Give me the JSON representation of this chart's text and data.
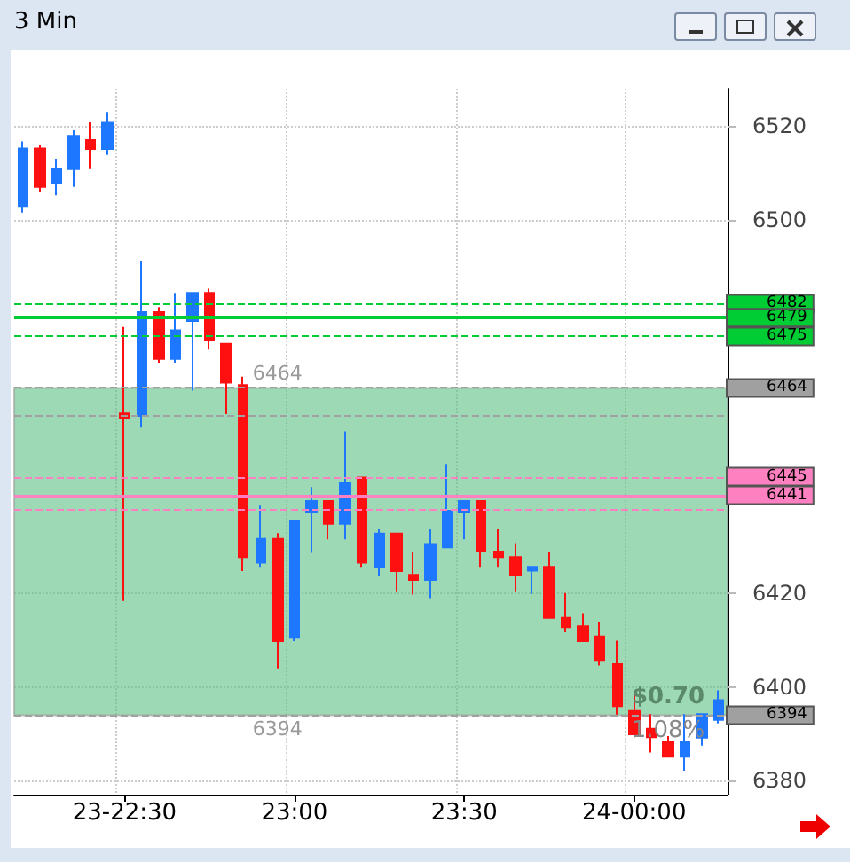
{
  "chart_data": {
    "type": "candlestick",
    "title": "3 Min",
    "categories": [
      null,
      null,
      null,
      null,
      null,
      null,
      "23-22:30",
      null,
      null,
      null,
      null,
      null,
      null,
      null,
      null,
      null,
      "23:00",
      null,
      null,
      null,
      null,
      null,
      null,
      null,
      null,
      null,
      "23:30",
      null,
      null,
      null,
      null,
      null,
      null,
      null,
      null,
      null,
      "24-00:00",
      null,
      null,
      null,
      null,
      null
    ],
    "ohlc": [
      [
        6502.9,
        6516.7,
        6501.5,
        6515.2
      ],
      [
        6515.2,
        6515.9,
        6505.8,
        6507.0
      ],
      [
        6507.9,
        6513.0,
        6505.2,
        6510.8
      ],
      [
        6510.8,
        6519.1,
        6507.0,
        6517.9
      ],
      [
        6517.0,
        6520.8,
        6510.8,
        6515.1
      ],
      [
        6515.1,
        6523.0,
        6513.8,
        6520.7
      ],
      [
        6458.5,
        6477.0,
        6418.4,
        6457.5
      ],
      [
        6458.0,
        6491.2,
        6455.5,
        6480.2
      ],
      [
        6480.2,
        6481.3,
        6469.4,
        6470.2
      ],
      [
        6470.2,
        6484.3,
        6469.4,
        6476.3
      ],
      [
        6478.3,
        6484.3,
        6463.4,
        6484.3
      ],
      [
        6484.3,
        6485.2,
        6472.2,
        6474.3
      ],
      [
        6473.4,
        6473.4,
        6458.4,
        6465.1
      ],
      [
        6464.6,
        6466.4,
        6424.8,
        6427.8
      ],
      [
        6426.6,
        6438.8,
        6425.7,
        6431.7
      ],
      [
        6431.7,
        6432.9,
        6404.0,
        6409.8
      ],
      [
        6410.7,
        6435.6,
        6409.8,
        6435.6
      ],
      [
        6437.5,
        6442.8,
        6428.7,
        6439.8
      ],
      [
        6439.8,
        6439.8,
        6431.6,
        6434.9
      ],
      [
        6434.9,
        6454.7,
        6431.6,
        6443.7
      ],
      [
        6444.8,
        6444.8,
        6425.7,
        6426.6
      ],
      [
        6425.7,
        6433.9,
        6423.7,
        6432.8
      ],
      [
        6432.8,
        6432.8,
        6420.5,
        6424.8
      ],
      [
        6424.0,
        6429.0,
        6419.8,
        6422.9
      ],
      [
        6422.9,
        6433.9,
        6419.0,
        6430.6
      ],
      [
        6429.9,
        6447.7,
        6429.9,
        6437.7
      ],
      [
        6437.5,
        6439.8,
        6431.6,
        6439.8
      ],
      [
        6439.8,
        6439.8,
        6425.7,
        6429.0
      ],
      [
        6429.0,
        6433.9,
        6425.7,
        6427.8
      ],
      [
        6427.8,
        6430.8,
        6420.5,
        6423.9
      ],
      [
        6424.9,
        6425.7,
        6419.9,
        6425.7
      ],
      [
        6425.7,
        6428.9,
        6414.8,
        6414.8
      ],
      [
        6414.8,
        6420.1,
        6411.7,
        6412.8
      ],
      [
        6413.0,
        6415.8,
        6409.8,
        6409.8
      ],
      [
        6410.8,
        6414.0,
        6404.6,
        6405.8
      ],
      [
        6404.9,
        6409.9,
        6394.1,
        6395.9
      ],
      [
        6394.9,
        6399.3,
        6389.3,
        6389.9
      ],
      [
        6391.1,
        6394.2,
        6386.0,
        6389.3
      ],
      [
        6388.3,
        6389.5,
        6385.1,
        6385.1
      ],
      [
        6385.1,
        6394.2,
        6382.1,
        6388.3
      ],
      [
        6389.2,
        6394.2,
        6387.5,
        6394.2
      ],
      [
        6393.0,
        6399.3,
        6392.2,
        6397.2
      ]
    ],
    "ylim": [
      6377,
      6528
    ],
    "yticks": [
      6380,
      6400,
      6420,
      6500,
      6520
    ],
    "grid": true,
    "ref_lines": [
      {
        "axis": "y",
        "value": 6482,
        "label": "6482",
        "color": "#00cc33",
        "line_style": "dashed"
      },
      {
        "axis": "y",
        "value": 6479,
        "label": "6479",
        "color": "#00cc33",
        "line_style": "solid"
      },
      {
        "axis": "y",
        "value": 6475,
        "label": "6475",
        "color": "#00cc33",
        "line_style": "dashed"
      },
      {
        "axis": "y",
        "value": 6464,
        "label": "6464",
        "color": "#a0a0a0",
        "line_style": "dashed"
      },
      {
        "axis": "y",
        "value": 6458,
        "label": null,
        "color": "#a0a0a0",
        "line_style": "dashed"
      },
      {
        "axis": "y",
        "value": 6445,
        "label": "6445",
        "color": "#ff80c0",
        "line_style": "dashed"
      },
      {
        "axis": "y",
        "value": 6441,
        "label": "6441",
        "color": "#ff80c0",
        "line_style": "solid"
      },
      {
        "axis": "y",
        "value": 6438,
        "label": null,
        "color": "#ff80c0",
        "line_style": "dashed"
      },
      {
        "axis": "y",
        "value": 6394,
        "label": "6394",
        "color": "#a0a0a0",
        "line_style": "dashed"
      }
    ],
    "bands": [
      {
        "axis": "y",
        "from": 6394,
        "to": 6464,
        "color": "#5cbf84"
      }
    ],
    "annotations": [
      {
        "text": "6464",
        "y": 6464
      },
      {
        "text": "6394",
        "y": 6394
      },
      "$0.70",
      "1.08%"
    ]
  }
}
